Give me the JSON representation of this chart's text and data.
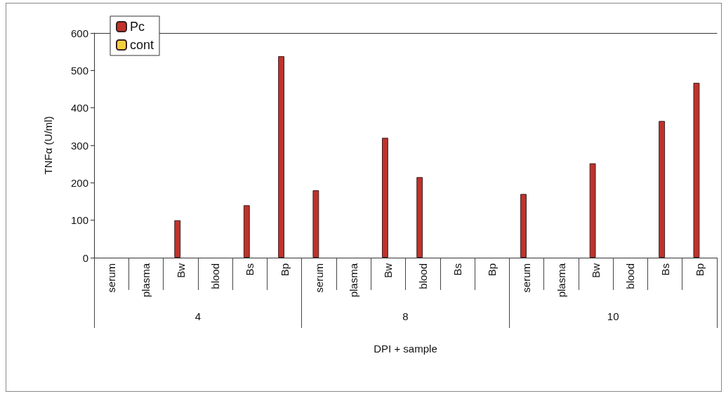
{
  "chart_data": {
    "type": "bar",
    "xlabel": "DPI + sample",
    "ylabel": "TNFα (U/ml)",
    "categories": [
      "serum",
      "plasma",
      "Bw",
      "blood",
      "Bs",
      "Bp",
      "serum",
      "plasma",
      "Bw",
      "blood",
      "Bs",
      "Bp",
      "serum",
      "plasma",
      "Bw",
      "blood",
      "Bs",
      "Bp"
    ],
    "annotations": [
      "4",
      "8",
      "10"
    ],
    "series": [
      {
        "name": "Pc",
        "color": "#c0322b",
        "values": [
          null,
          null,
          100,
          null,
          140,
          538,
          180,
          null,
          320,
          215,
          null,
          null,
          170,
          null,
          252,
          null,
          365,
          467
        ]
      },
      {
        "name": "cont",
        "color": "#f0d040",
        "values": [
          null,
          null,
          null,
          null,
          null,
          null,
          null,
          null,
          null,
          null,
          null,
          null,
          null,
          null,
          null,
          null,
          null,
          null
        ]
      }
    ],
    "ylim": [
      0,
      600
    ],
    "yticks": [
      0,
      100,
      200,
      300,
      400,
      500,
      600
    ],
    "grid": false,
    "legend": "top left"
  }
}
